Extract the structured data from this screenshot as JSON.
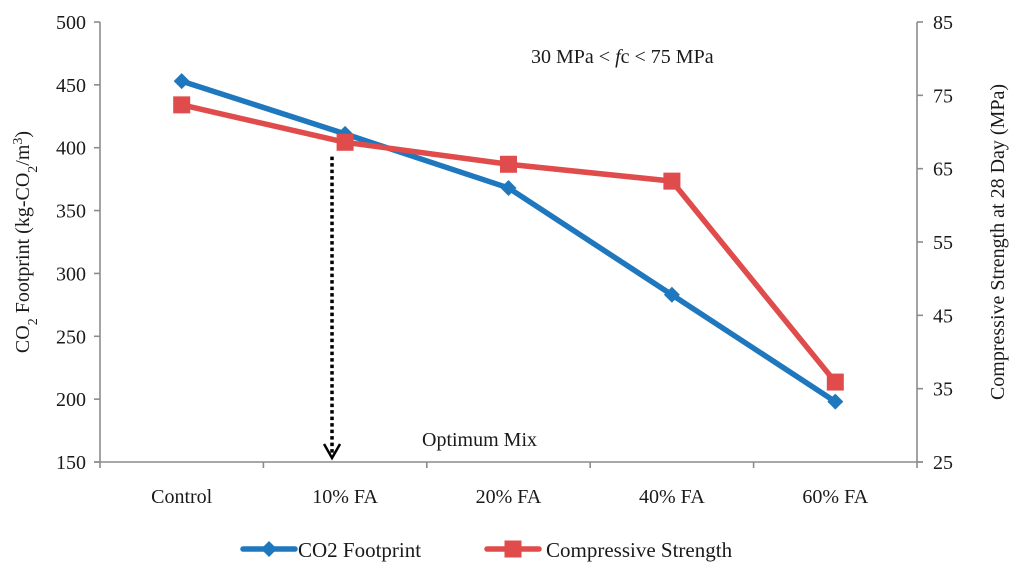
{
  "chart_data": {
    "type": "line",
    "title": "",
    "categories": [
      "Control",
      "10% FA",
      "20% FA",
      "40% FA",
      "60% FA"
    ],
    "xlabel": "",
    "ylabel_left_parts": [
      "CO",
      "2",
      " Footprint (kg-CO",
      "2",
      "/m",
      "3",
      ")"
    ],
    "ylabel_left": "CO2 Footprint (kg-CO2/m3)",
    "ylabel_right": "Compressive Strength at 28 Day (MPa)",
    "ylim_left": [
      150,
      500
    ],
    "yticks_left": [
      150,
      200,
      250,
      300,
      350,
      400,
      450,
      500
    ],
    "ylim_right": [
      25,
      85
    ],
    "yticks_right": [
      25,
      35,
      45,
      55,
      65,
      75,
      85
    ],
    "grid": false,
    "legend_position": "bottom",
    "series": [
      {
        "name": "CO2 Footprint",
        "axis": "left",
        "color": "#1f78be",
        "marker": "diamond",
        "values": [
          453,
          411,
          368,
          283,
          198
        ]
      },
      {
        "name": "Compressive Strength",
        "axis": "right",
        "color": "#e04b4b",
        "marker": "square",
        "values": [
          73.7,
          68.6,
          65.6,
          63.3,
          35.9
        ]
      }
    ],
    "annotations": {
      "range_text_parts": [
        "30 MPa < ",
        "f",
        "c < 75 MPa"
      ],
      "range_text": "30 MPa < fc < 75 MPa",
      "optimum_label": "Optimum Mix",
      "optimum_category_position": 1.42
    }
  }
}
